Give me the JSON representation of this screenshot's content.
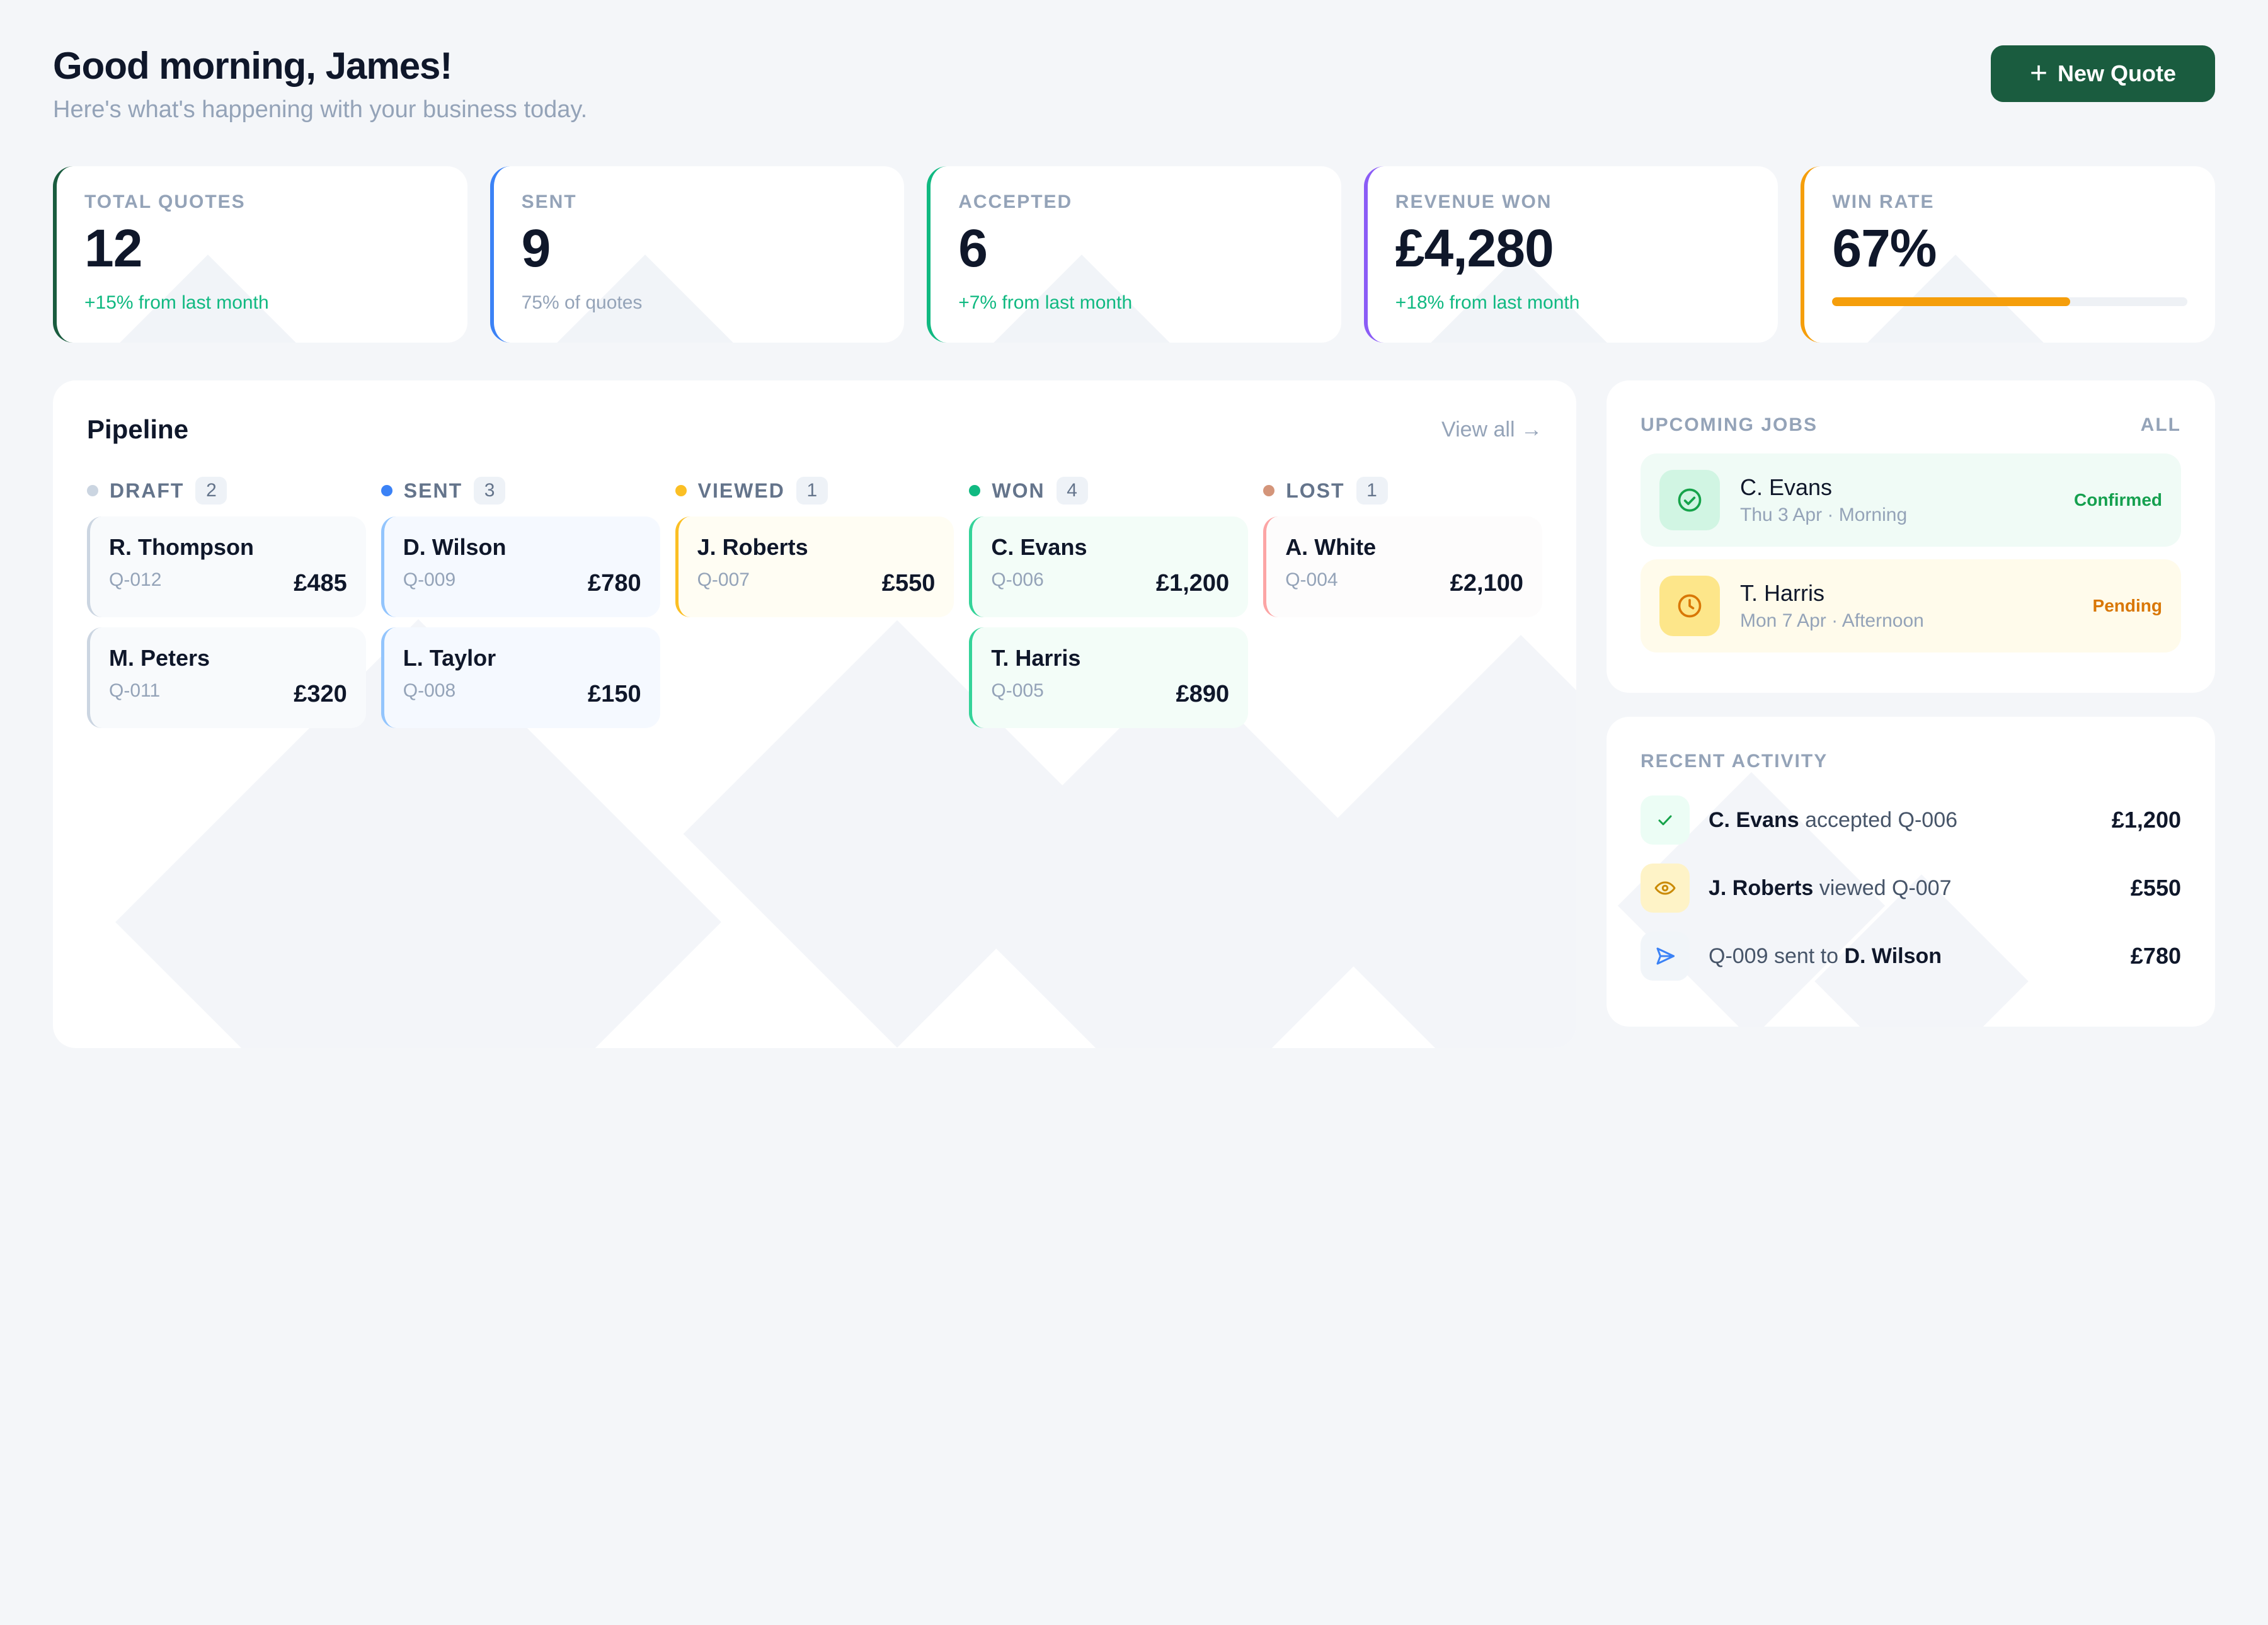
{
  "header": {
    "greeting": "Good morning, James!",
    "subtitle": "Here's what's happening with your business today.",
    "new_quote_label": "New Quote"
  },
  "stats": [
    {
      "label": "TOTAL QUOTES",
      "value": "12",
      "note": "+15% from last month",
      "accent": "#1a5c3f"
    },
    {
      "label": "SENT",
      "value": "9",
      "note": "75% of quotes",
      "accent": "#3b82f6"
    },
    {
      "label": "ACCEPTED",
      "value": "6",
      "note": "+7% from last month",
      "accent": "#10b981"
    },
    {
      "label": "REVENUE WON",
      "value": "£4,280",
      "note": "+18% from last month",
      "accent": "#8b5cf6"
    },
    {
      "label": "WIN RATE",
      "value": "67%",
      "progress_fraction": 0.67,
      "accent": "#f59e0b"
    }
  ],
  "pipeline": {
    "title": "Pipeline",
    "view_all": "View all →",
    "columns": [
      {
        "name": "DRAFT",
        "count": "2",
        "dot": "#cbd5e1",
        "border": "#cbd5e1",
        "bg": "#f8fafc",
        "cards": [
          {
            "name": "R. Thompson",
            "id": "Q-012",
            "amount": "£485"
          },
          {
            "name": "M. Peters",
            "id": "Q-011",
            "amount": "£320"
          }
        ]
      },
      {
        "name": "SENT",
        "count": "3",
        "dot": "#3b82f6",
        "border": "#93c5fd",
        "bg": "#f5f9ff",
        "cards": [
          {
            "name": "D. Wilson",
            "id": "Q-009",
            "amount": "£780"
          },
          {
            "name": "L. Taylor",
            "id": "Q-008",
            "amount": "£150"
          }
        ]
      },
      {
        "name": "VIEWED",
        "count": "1",
        "dot": "#fbbf24",
        "border": "#fbbf24",
        "bg": "#fffdf3",
        "cards": [
          {
            "name": "J. Roberts",
            "id": "Q-007",
            "amount": "£550"
          }
        ]
      },
      {
        "name": "WON",
        "count": "4",
        "dot": "#10b981",
        "border": "#34d399",
        "bg": "#f3fdf8",
        "cards": [
          {
            "name": "C. Evans",
            "id": "Q-006",
            "amount": "£1,200"
          },
          {
            "name": "T. Harris",
            "id": "Q-005",
            "amount": "£890"
          }
        ]
      },
      {
        "name": "LOST",
        "count": "1",
        "dot": "#d4957a",
        "border": "#fca5a5",
        "bg": "#fdfcfc",
        "cards": [
          {
            "name": "A. White",
            "id": "Q-004",
            "amount": "£2,100"
          }
        ]
      }
    ]
  },
  "upcoming_jobs": {
    "title": "UPCOMING JOBS",
    "all_label": "ALL",
    "items": [
      {
        "name": "C. Evans",
        "when": "Thu 3 Apr · Morning",
        "status": "Confirmed",
        "icon": "check-circle-icon",
        "bg": "#f0fbf6",
        "icon_bg": "#d1f5e3",
        "icon_color": "#16a34a",
        "status_color": "#15a04f"
      },
      {
        "name": "T. Harris",
        "when": "Mon 7 Apr · Afternoon",
        "status": "Pending",
        "icon": "clock-icon",
        "bg": "#fffbeb",
        "icon_bg": "#fde68a",
        "icon_color": "#d97706",
        "status_color": "#d97706"
      }
    ]
  },
  "recent_activity": {
    "title": "RECENT ACTIVITY",
    "items": [
      {
        "icon": "check-icon",
        "icon_bg": "#ecfdf5",
        "icon_color": "#16a34a",
        "parts": [
          {
            "t": "C. Evans",
            "b": true
          },
          {
            "t": " accepted Q-006",
            "b": false
          }
        ],
        "amount": "£1,200"
      },
      {
        "icon": "eye-icon",
        "icon_bg": "#fef3c7",
        "icon_color": "#ca8a04",
        "parts": [
          {
            "t": "J. Roberts",
            "b": true
          },
          {
            "t": " viewed Q-007",
            "b": false
          }
        ],
        "amount": "£550"
      },
      {
        "icon": "send-icon",
        "icon_bg": "#f1f5f9",
        "icon_color": "#3b82f6",
        "parts": [
          {
            "t": "Q-009 sent to ",
            "b": false
          },
          {
            "t": "D. Wilson",
            "b": true
          }
        ],
        "amount": "£780"
      }
    ]
  }
}
